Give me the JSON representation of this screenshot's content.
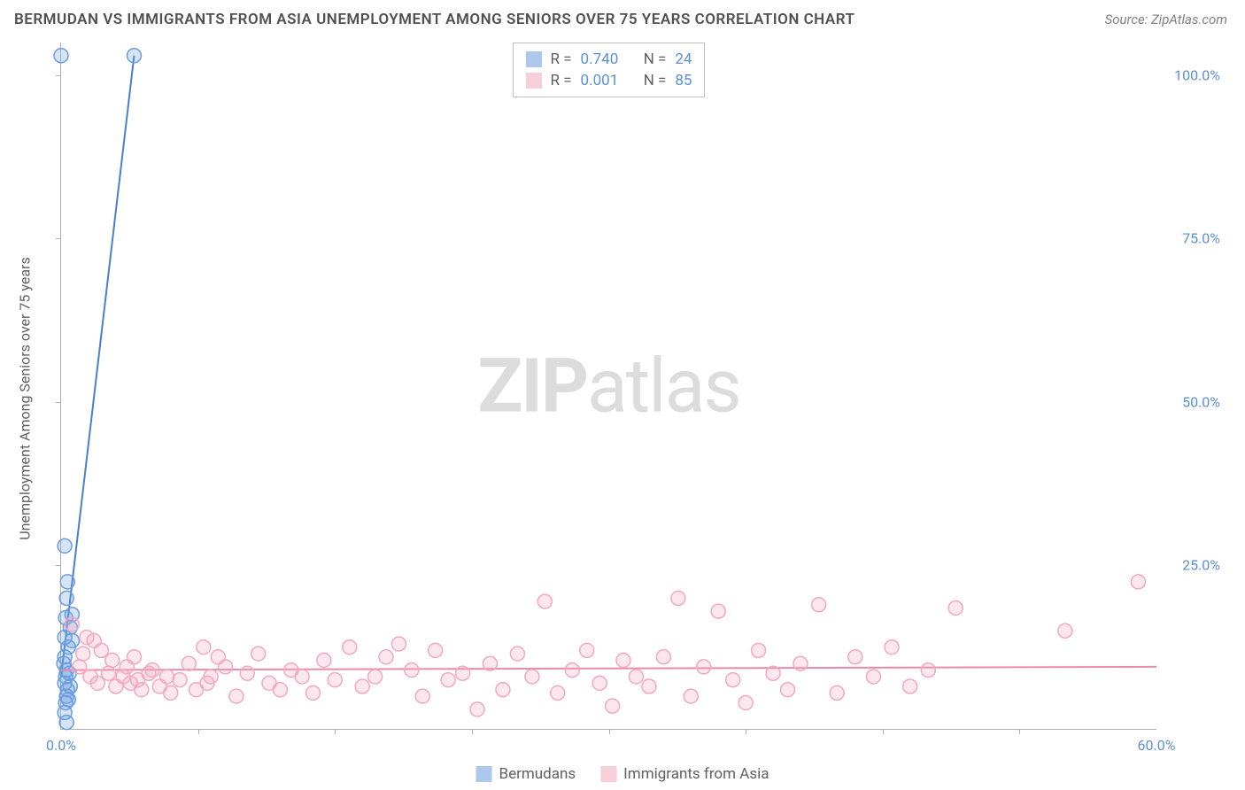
{
  "header": {
    "title": "BERMUDAN VS IMMIGRANTS FROM ASIA UNEMPLOYMENT AMONG SENIORS OVER 75 YEARS CORRELATION CHART",
    "source_label": "Source: ",
    "source_value": "ZipAtlas.com"
  },
  "watermark": {
    "bold": "ZIP",
    "rest": "atlas"
  },
  "chart": {
    "type": "scatter",
    "y_axis_label": "Unemployment Among Seniors over 75 years",
    "background_color": "#ffffff",
    "axis_color": "#b0b0b0",
    "tick_label_color": "#5b8fd6",
    "axis_label_color": "#606060",
    "xlim": [
      0,
      60
    ],
    "ylim": [
      0,
      105
    ],
    "x_ticks_major": [
      0,
      60
    ],
    "x_ticks_minor": [
      7.5,
      15,
      22.5,
      30,
      37.5,
      45,
      52.5
    ],
    "x_tick_labels": {
      "0": "0.0%",
      "60": "60.0%"
    },
    "y_ticks": [
      25,
      50,
      75,
      100
    ],
    "y_tick_labels": {
      "25": "25.0%",
      "50": "50.0%",
      "75": "75.0%",
      "100": "100.0%"
    },
    "marker_radius": 8,
    "marker_stroke_width": 1.5,
    "marker_fill_opacity": 0.28,
    "line_width": 2,
    "series": [
      {
        "id": "bermudans",
        "label": "Bermudans",
        "color": "#6a9de0",
        "line_color": "#4a7fd0",
        "R": "0.740",
        "N": "24",
        "trend": [
          [
            0.0,
            8.0
          ],
          [
            4.0,
            103.0
          ]
        ],
        "points": [
          [
            0.0,
            103.0
          ],
          [
            4.0,
            103.0
          ],
          [
            0.2,
            28.0
          ],
          [
            0.35,
            22.5
          ],
          [
            0.3,
            20.0
          ],
          [
            0.25,
            17.0
          ],
          [
            0.6,
            17.5
          ],
          [
            0.5,
            15.5
          ],
          [
            0.2,
            14.0
          ],
          [
            0.4,
            12.5
          ],
          [
            0.2,
            11.0
          ],
          [
            0.15,
            10.0
          ],
          [
            0.6,
            13.5
          ],
          [
            0.3,
            9.0
          ],
          [
            0.25,
            8.0
          ],
          [
            0.45,
            8.5
          ],
          [
            0.2,
            7.0
          ],
          [
            0.35,
            6.0
          ],
          [
            0.5,
            6.5
          ],
          [
            0.3,
            5.0
          ],
          [
            0.25,
            4.0
          ],
          [
            0.4,
            4.5
          ],
          [
            0.2,
            2.5
          ],
          [
            0.3,
            1.0
          ]
        ]
      },
      {
        "id": "immigrants_asia",
        "label": "Immigrants from Asia",
        "color": "#f2a8be",
        "line_color": "#e88ca8",
        "R": "0.001",
        "N": "85",
        "trend": [
          [
            0.0,
            9.0
          ],
          [
            60.0,
            9.5
          ]
        ],
        "points": [
          [
            0.6,
            16.0
          ],
          [
            1.2,
            11.5
          ],
          [
            1.4,
            14.0
          ],
          [
            1.8,
            13.5
          ],
          [
            1.0,
            9.5
          ],
          [
            1.6,
            8.0
          ],
          [
            2.2,
            12.0
          ],
          [
            2.6,
            8.5
          ],
          [
            2.8,
            10.5
          ],
          [
            2.0,
            7.0
          ],
          [
            3.0,
            6.5
          ],
          [
            3.4,
            8.0
          ],
          [
            3.8,
            7.0
          ],
          [
            3.6,
            9.5
          ],
          [
            4.0,
            11.0
          ],
          [
            4.4,
            6.0
          ],
          [
            4.8,
            8.5
          ],
          [
            4.2,
            7.5
          ],
          [
            5.0,
            9.0
          ],
          [
            5.4,
            6.5
          ],
          [
            5.8,
            8.0
          ],
          [
            6.0,
            5.5
          ],
          [
            6.5,
            7.5
          ],
          [
            7.0,
            10.0
          ],
          [
            7.4,
            6.0
          ],
          [
            7.8,
            12.5
          ],
          [
            8.2,
            8.0
          ],
          [
            8.6,
            11.0
          ],
          [
            8.0,
            7.0
          ],
          [
            9.0,
            9.5
          ],
          [
            9.6,
            5.0
          ],
          [
            10.2,
            8.5
          ],
          [
            10.8,
            11.5
          ],
          [
            11.4,
            7.0
          ],
          [
            12.0,
            6.0
          ],
          [
            12.6,
            9.0
          ],
          [
            13.2,
            8.0
          ],
          [
            13.8,
            5.5
          ],
          [
            14.4,
            10.5
          ],
          [
            15.0,
            7.5
          ],
          [
            15.8,
            12.5
          ],
          [
            16.5,
            6.5
          ],
          [
            17.2,
            8.0
          ],
          [
            17.8,
            11.0
          ],
          [
            18.5,
            13.0
          ],
          [
            19.2,
            9.0
          ],
          [
            19.8,
            5.0
          ],
          [
            20.5,
            12.0
          ],
          [
            21.2,
            7.5
          ],
          [
            22.0,
            8.5
          ],
          [
            22.8,
            3.0
          ],
          [
            23.5,
            10.0
          ],
          [
            24.2,
            6.0
          ],
          [
            25.0,
            11.5
          ],
          [
            25.8,
            8.0
          ],
          [
            26.5,
            19.5
          ],
          [
            27.2,
            5.5
          ],
          [
            28.0,
            9.0
          ],
          [
            28.8,
            12.0
          ],
          [
            29.5,
            7.0
          ],
          [
            30.2,
            3.5
          ],
          [
            30.8,
            10.5
          ],
          [
            31.5,
            8.0
          ],
          [
            32.2,
            6.5
          ],
          [
            33.0,
            11.0
          ],
          [
            33.8,
            20.0
          ],
          [
            34.5,
            5.0
          ],
          [
            35.2,
            9.5
          ],
          [
            36.0,
            18.0
          ],
          [
            36.8,
            7.5
          ],
          [
            37.5,
            4.0
          ],
          [
            38.2,
            12.0
          ],
          [
            39.0,
            8.5
          ],
          [
            39.8,
            6.0
          ],
          [
            40.5,
            10.0
          ],
          [
            41.5,
            19.0
          ],
          [
            42.5,
            5.5
          ],
          [
            43.5,
            11.0
          ],
          [
            44.5,
            8.0
          ],
          [
            45.5,
            12.5
          ],
          [
            46.5,
            6.5
          ],
          [
            47.5,
            9.0
          ],
          [
            49.0,
            18.5
          ],
          [
            55.0,
            15.0
          ],
          [
            59.0,
            22.5
          ]
        ]
      }
    ]
  },
  "stats_box": {
    "R_label": "R =",
    "N_label": "N ="
  },
  "bottom_legend": {}
}
